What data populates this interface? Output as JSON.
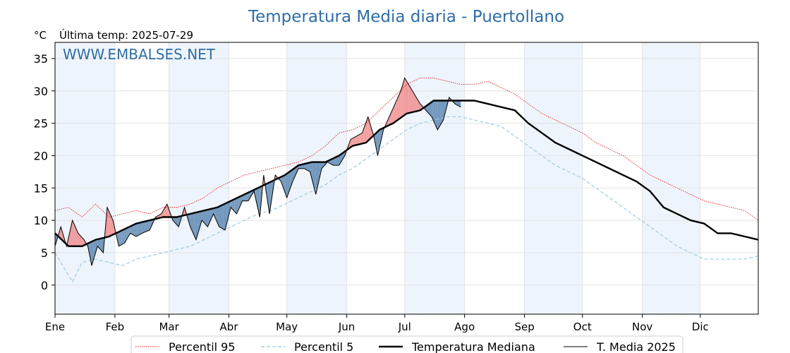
{
  "chart_data": {
    "type": "line",
    "title": "Temperatura Media diaria - Puertollano",
    "unit_label": "°C",
    "subtitle": "Última temp: 2025-07-29",
    "watermark": "WWW.EMBALSES.NET",
    "xlabel": "",
    "ylabel": "",
    "ylim": [
      -4.5,
      37.5
    ],
    "yticks": [
      0,
      5,
      10,
      15,
      20,
      25,
      30,
      35
    ],
    "months": [
      "Ene",
      "Feb",
      "Mar",
      "Abr",
      "May",
      "Jun",
      "Jul",
      "Ago",
      "Sep",
      "Oct",
      "Nov",
      "Dic"
    ],
    "month_start_days": [
      1,
      32,
      60,
      91,
      121,
      152,
      182,
      213,
      244,
      274,
      305,
      335
    ],
    "days_in_year": 365,
    "grid": true,
    "legend_position": "bottom-center",
    "colors": {
      "p95": "#e41a1c",
      "p5": "#9ecae1",
      "median": "#000000",
      "current": "#000000",
      "above_fill": "#f08080",
      "below_fill": "#4a7aa8",
      "month_band": "#eef4fb",
      "title": "#2e6da4"
    },
    "series": [
      {
        "name": "Percentil 95",
        "style": "dotted",
        "points": [
          [
            1,
            11.5
          ],
          [
            8,
            12
          ],
          [
            15,
            10.5
          ],
          [
            22,
            12.5
          ],
          [
            29,
            10.5
          ],
          [
            36,
            11
          ],
          [
            43,
            11.5
          ],
          [
            50,
            11
          ],
          [
            57,
            12
          ],
          [
            64,
            12
          ],
          [
            71,
            12.5
          ],
          [
            78,
            13.5
          ],
          [
            85,
            15
          ],
          [
            92,
            16
          ],
          [
            99,
            17
          ],
          [
            106,
            17.5
          ],
          [
            113,
            18
          ],
          [
            120,
            18.5
          ],
          [
            127,
            19
          ],
          [
            134,
            20
          ],
          [
            141,
            21.5
          ],
          [
            148,
            23.5
          ],
          [
            155,
            24
          ],
          [
            162,
            25
          ],
          [
            169,
            27
          ],
          [
            176,
            29
          ],
          [
            183,
            31
          ],
          [
            190,
            32
          ],
          [
            197,
            32
          ],
          [
            204,
            31.5
          ],
          [
            211,
            31
          ],
          [
            218,
            31
          ],
          [
            225,
            31.5
          ],
          [
            232,
            30.5
          ],
          [
            239,
            29.5
          ],
          [
            246,
            28
          ],
          [
            253,
            26.5
          ],
          [
            260,
            25.5
          ],
          [
            267,
            24.5
          ],
          [
            274,
            23.5
          ],
          [
            281,
            22
          ],
          [
            288,
            21
          ],
          [
            295,
            20
          ],
          [
            302,
            18.5
          ],
          [
            309,
            17
          ],
          [
            316,
            16
          ],
          [
            323,
            15
          ],
          [
            330,
            14
          ],
          [
            337,
            13
          ],
          [
            344,
            12.5
          ],
          [
            351,
            12
          ],
          [
            358,
            11.5
          ],
          [
            365,
            10
          ]
        ]
      },
      {
        "name": "Percentil 5",
        "style": "dashed",
        "points": [
          [
            1,
            5
          ],
          [
            5,
            3
          ],
          [
            10,
            0.5
          ],
          [
            15,
            3.5
          ],
          [
            22,
            4
          ],
          [
            29,
            3.5
          ],
          [
            36,
            3
          ],
          [
            43,
            4
          ],
          [
            50,
            4.5
          ],
          [
            57,
            5
          ],
          [
            64,
            5.5
          ],
          [
            71,
            6
          ],
          [
            78,
            7
          ],
          [
            85,
            8
          ],
          [
            92,
            9
          ],
          [
            99,
            10
          ],
          [
            106,
            11
          ],
          [
            113,
            11.5
          ],
          [
            120,
            12.5
          ],
          [
            127,
            13.5
          ],
          [
            134,
            14.5
          ],
          [
            141,
            15.5
          ],
          [
            148,
            17
          ],
          [
            155,
            18
          ],
          [
            162,
            19.5
          ],
          [
            169,
            21
          ],
          [
            176,
            22.5
          ],
          [
            183,
            24
          ],
          [
            190,
            25
          ],
          [
            197,
            25.5
          ],
          [
            204,
            26
          ],
          [
            211,
            26
          ],
          [
            218,
            25.5
          ],
          [
            225,
            25
          ],
          [
            232,
            24.5
          ],
          [
            239,
            23
          ],
          [
            246,
            21.5
          ],
          [
            253,
            20
          ],
          [
            260,
            18.5
          ],
          [
            267,
            17.5
          ],
          [
            274,
            16.5
          ],
          [
            281,
            15
          ],
          [
            288,
            13.5
          ],
          [
            295,
            12
          ],
          [
            302,
            10.5
          ],
          [
            309,
            9
          ],
          [
            316,
            7.5
          ],
          [
            323,
            6
          ],
          [
            330,
            5
          ],
          [
            337,
            4
          ],
          [
            344,
            4
          ],
          [
            351,
            4
          ],
          [
            358,
            4
          ],
          [
            365,
            4.5
          ]
        ]
      },
      {
        "name": "Temperatura Mediana",
        "style": "solid-thick",
        "points": [
          [
            1,
            8
          ],
          [
            8,
            6
          ],
          [
            15,
            6
          ],
          [
            22,
            7
          ],
          [
            29,
            7.5
          ],
          [
            36,
            8.5
          ],
          [
            43,
            9.5
          ],
          [
            50,
            10
          ],
          [
            57,
            10.5
          ],
          [
            64,
            10.5
          ],
          [
            71,
            11
          ],
          [
            78,
            11.5
          ],
          [
            85,
            12
          ],
          [
            92,
            13
          ],
          [
            99,
            14
          ],
          [
            106,
            15
          ],
          [
            113,
            16
          ],
          [
            120,
            17
          ],
          [
            127,
            18.5
          ],
          [
            134,
            19
          ],
          [
            141,
            19
          ],
          [
            148,
            20
          ],
          [
            155,
            21.5
          ],
          [
            162,
            22
          ],
          [
            169,
            24
          ],
          [
            176,
            25
          ],
          [
            183,
            26.5
          ],
          [
            190,
            27
          ],
          [
            197,
            28.5
          ],
          [
            204,
            28.5
          ],
          [
            211,
            28.5
          ],
          [
            218,
            28.5
          ],
          [
            225,
            28
          ],
          [
            232,
            27.5
          ],
          [
            239,
            27
          ],
          [
            246,
            25
          ],
          [
            253,
            23.5
          ],
          [
            260,
            22
          ],
          [
            267,
            21
          ],
          [
            274,
            20
          ],
          [
            281,
            19
          ],
          [
            288,
            18
          ],
          [
            295,
            17
          ],
          [
            302,
            16
          ],
          [
            309,
            14.5
          ],
          [
            316,
            12
          ],
          [
            323,
            11
          ],
          [
            330,
            10
          ],
          [
            337,
            9.5
          ],
          [
            344,
            8
          ],
          [
            351,
            8
          ],
          [
            358,
            7.5
          ],
          [
            365,
            7
          ]
        ]
      },
      {
        "name": "T. Media 2025",
        "style": "solid-thin",
        "points": [
          [
            1,
            6
          ],
          [
            4,
            9
          ],
          [
            7,
            6
          ],
          [
            10,
            10
          ],
          [
            13,
            8
          ],
          [
            16,
            7
          ],
          [
            18,
            6
          ],
          [
            20,
            3
          ],
          [
            23,
            6
          ],
          [
            26,
            5
          ],
          [
            28,
            12
          ],
          [
            31,
            10
          ],
          [
            34,
            6
          ],
          [
            37,
            6.5
          ],
          [
            40,
            8
          ],
          [
            43,
            7.5
          ],
          [
            46,
            8
          ],
          [
            50,
            8.5
          ],
          [
            53,
            10.5
          ],
          [
            56,
            11
          ],
          [
            59,
            12.5
          ],
          [
            62,
            10
          ],
          [
            65,
            9
          ],
          [
            68,
            12
          ],
          [
            71,
            9
          ],
          [
            74,
            7
          ],
          [
            77,
            10
          ],
          [
            80,
            9
          ],
          [
            83,
            11
          ],
          [
            86,
            9
          ],
          [
            89,
            8.5
          ],
          [
            92,
            12
          ],
          [
            95,
            11
          ],
          [
            98,
            13
          ],
          [
            101,
            13
          ],
          [
            104,
            14.5
          ],
          [
            107,
            10.5
          ],
          [
            109,
            17
          ],
          [
            112,
            11
          ],
          [
            115,
            17
          ],
          [
            118,
            16
          ],
          [
            121,
            13.5
          ],
          [
            124,
            16
          ],
          [
            127,
            18
          ],
          [
            130,
            18
          ],
          [
            133,
            17.5
          ],
          [
            136,
            14
          ],
          [
            139,
            18
          ],
          [
            142,
            19
          ],
          [
            145,
            18.5
          ],
          [
            148,
            18.5
          ],
          [
            151,
            20
          ],
          [
            154,
            22.5
          ],
          [
            157,
            23
          ],
          [
            160,
            23.5
          ],
          [
            163,
            26
          ],
          [
            166,
            23
          ],
          [
            168,
            20
          ],
          [
            171,
            24
          ],
          [
            174,
            26
          ],
          [
            177,
            28
          ],
          [
            180,
            30
          ],
          [
            182,
            32
          ],
          [
            184,
            31
          ],
          [
            187,
            29.5
          ],
          [
            190,
            28
          ],
          [
            193,
            27
          ],
          [
            196,
            26
          ],
          [
            199,
            24
          ],
          [
            202,
            25.5
          ],
          [
            205,
            29
          ],
          [
            208,
            28
          ],
          [
            211,
            27.5
          ]
        ]
      }
    ]
  },
  "legend": {
    "items": [
      {
        "label": "Percentil 95"
      },
      {
        "label": "Percentil 5"
      },
      {
        "label": "Temperatura Mediana"
      },
      {
        "label": "T. Media 2025"
      }
    ]
  }
}
